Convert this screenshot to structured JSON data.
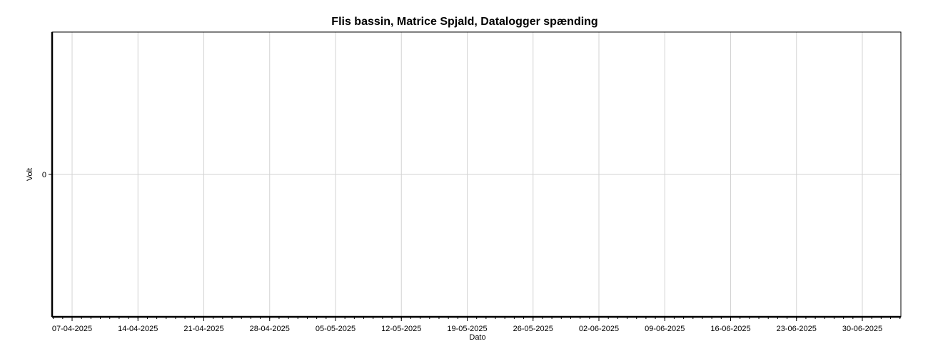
{
  "chart_data": {
    "type": "line",
    "title": "Flis bassin, Matrice Spjald, Datalogger spænding",
    "xlabel": "Dato",
    "ylabel": "Volt",
    "x_ticks": [
      "07-04-2025",
      "14-04-2025",
      "21-04-2025",
      "28-04-2025",
      "05-05-2025",
      "12-05-2025",
      "19-05-2025",
      "26-05-2025",
      "02-06-2025",
      "09-06-2025",
      "16-06-2025",
      "23-06-2025",
      "30-06-2025"
    ],
    "y_ticks": [
      "0"
    ],
    "grid": true,
    "legend": "none",
    "series": []
  }
}
